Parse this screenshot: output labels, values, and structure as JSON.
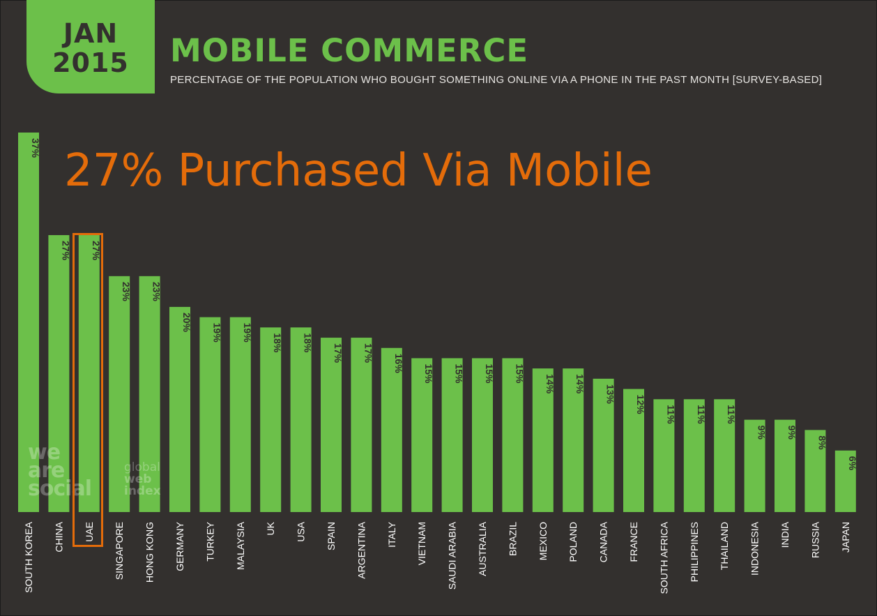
{
  "badge": {
    "month": "JAN",
    "year": "2015"
  },
  "header": {
    "title": "MOBILE COMMERCE",
    "subtitle": "PERCENTAGE OF THE POPULATION WHO BOUGHT SOMETHING ONLINE VIA A PHONE IN THE PAST MONTH [SURVEY-BASED]"
  },
  "callout": "27% Purchased Via Mobile",
  "watermark": {
    "we_are_social": [
      "we",
      "are",
      "social"
    ],
    "global_web_index": [
      "global",
      "web",
      "index"
    ]
  },
  "colors": {
    "bar": "#6cc04a",
    "background": "#33302e",
    "label": "#ffffff",
    "value_text": "#33302e",
    "callout": "#e46c0a",
    "highlight": "#e46c0a"
  },
  "highlighted_category": "UAE",
  "chart_data": {
    "type": "bar",
    "categories": [
      "SOUTH KOREA",
      "CHINA",
      "UAE",
      "SINGAPORE",
      "HONG KONG",
      "GERMANY",
      "TURKEY",
      "MALAYSIA",
      "UK",
      "USA",
      "SPAIN",
      "ARGENTINA",
      "ITALY",
      "VIETNAM",
      "SAUDI ARABIA",
      "AUSTRALIA",
      "BRAZIL",
      "MEXICO",
      "POLAND",
      "CANADA",
      "FRANCE",
      "SOUTH AFRICA",
      "PHILIPPINES",
      "THAILAND",
      "INDONESIA",
      "INDIA",
      "RUSSIA",
      "JAPAN"
    ],
    "values": [
      37,
      27,
      27,
      23,
      23,
      20,
      19,
      19,
      18,
      18,
      17,
      17,
      16,
      15,
      15,
      15,
      15,
      14,
      14,
      13,
      12,
      11,
      11,
      11,
      9,
      9,
      8,
      6
    ],
    "data_labels": [
      "37%",
      "27%",
      "27%",
      "23%",
      "23%",
      "20%",
      "19%",
      "19%",
      "18%",
      "18%",
      "17%",
      "17%",
      "16%",
      "15%",
      "15%",
      "15%",
      "15%",
      "14%",
      "14%",
      "13%",
      "12%",
      "11%",
      "11%",
      "11%",
      "9%",
      "9%",
      "8%",
      "6%"
    ],
    "ylim": [
      0,
      37
    ],
    "title": "MOBILE COMMERCE",
    "xlabel": "",
    "ylabel": "",
    "grid": false,
    "legend": "none"
  }
}
